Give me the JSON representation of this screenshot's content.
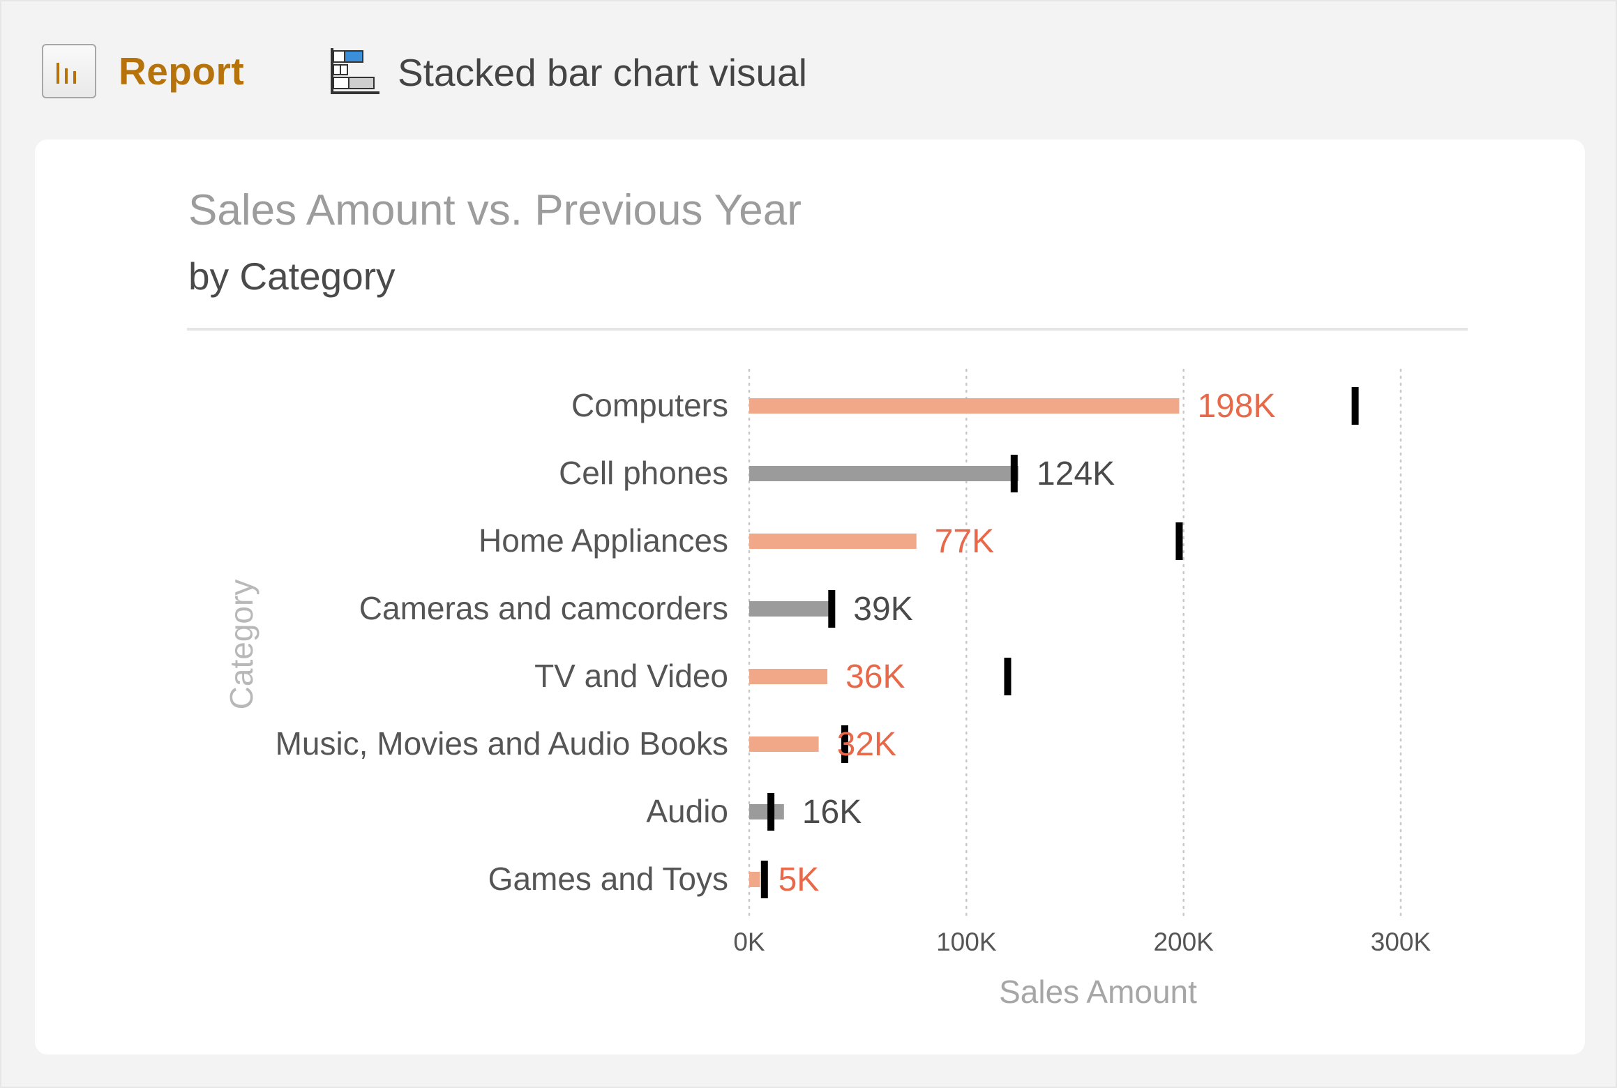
{
  "header": {
    "report_tab": {
      "label": "Report",
      "icon": "bar-chart-icon",
      "color": "#b7730b"
    },
    "visual_tab": {
      "label": "Stacked bar chart visual",
      "icon": "stacked-bar-chart-icon"
    }
  },
  "chart_data": {
    "type": "bar",
    "orientation": "horizontal",
    "title": "Sales Amount vs. Previous Year",
    "subtitle": "by Category",
    "xlabel": "Sales Amount",
    "ylabel": "Category",
    "xlim": [
      0,
      300000
    ],
    "xticks": [
      {
        "value": 0,
        "label": "0K"
      },
      {
        "value": 100000,
        "label": "100K"
      },
      {
        "value": 200000,
        "label": "200K"
      },
      {
        "value": 300000,
        "label": "300K"
      }
    ],
    "grid": "vertical-dotted",
    "colors": {
      "below_previous_year": "#f0a889",
      "below_label": "#e8694a",
      "above_previous_year": "#9b9b9b",
      "above_label": "#4a4a4a",
      "previous_year_marker": "#000000"
    },
    "categories": [
      {
        "name": "Computers",
        "value": 198000,
        "label": "198K",
        "previous_year": 279000
      },
      {
        "name": "Cell phones",
        "value": 124000,
        "label": "124K",
        "previous_year": 122000
      },
      {
        "name": "Home Appliances",
        "value": 77000,
        "label": "77K",
        "previous_year": 198000
      },
      {
        "name": "Cameras and camcorders",
        "value": 39000,
        "label": "39K",
        "previous_year": 38000
      },
      {
        "name": "TV and Video",
        "value": 36000,
        "label": "36K",
        "previous_year": 119000
      },
      {
        "name": "Music, Movies and Audio Books",
        "value": 32000,
        "label": "32K",
        "previous_year": 44000
      },
      {
        "name": "Audio",
        "value": 16000,
        "label": "16K",
        "previous_year": 10000
      },
      {
        "name": "Games and Toys",
        "value": 5000,
        "label": "5K",
        "previous_year": 7000
      }
    ]
  }
}
